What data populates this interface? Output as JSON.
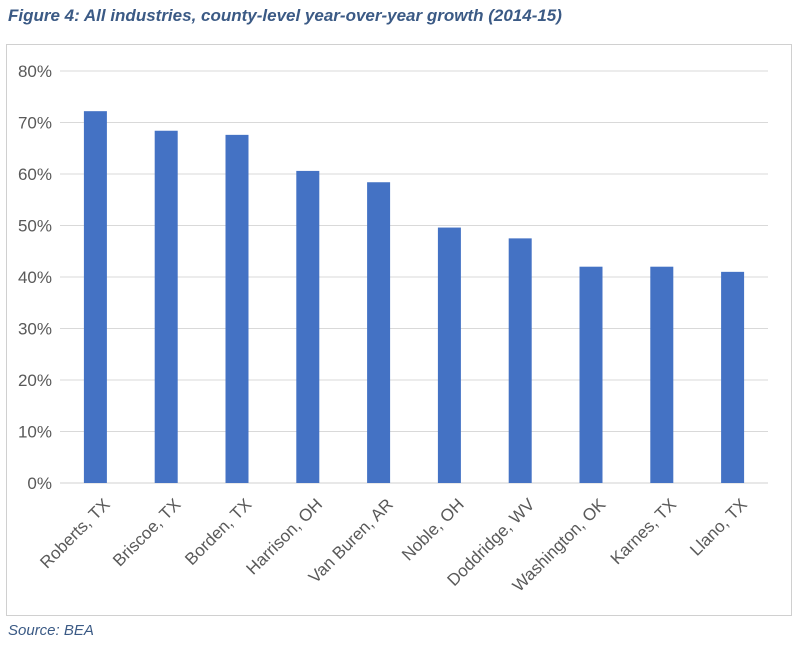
{
  "figure": {
    "title": "Figure 4: All industries, county-level year-over-year growth (2014-15)",
    "source": "Source: BEA"
  },
  "chart_data": {
    "type": "bar",
    "categories": [
      "Roberts, TX",
      "Briscoe, TX",
      "Borden, TX",
      "Harrison, OH",
      "Van Buren, AR",
      "Noble, OH",
      "Doddridge, WV",
      "Washington, OK",
      "Karnes, TX",
      "Llano, TX"
    ],
    "values": [
      72.2,
      68.4,
      67.6,
      60.6,
      58.4,
      49.6,
      47.5,
      42.0,
      42.0,
      41.0
    ],
    "ylim": [
      0,
      80
    ],
    "yticks": [
      0,
      10,
      20,
      30,
      40,
      50,
      60,
      70,
      80
    ],
    "ytick_labels": [
      "0%",
      "10%",
      "20%",
      "30%",
      "40%",
      "50%",
      "60%",
      "70%",
      "80%"
    ],
    "bar_color": "#4472c4",
    "grid_color": "#d9d9d9",
    "grid": true,
    "legend": false
  }
}
